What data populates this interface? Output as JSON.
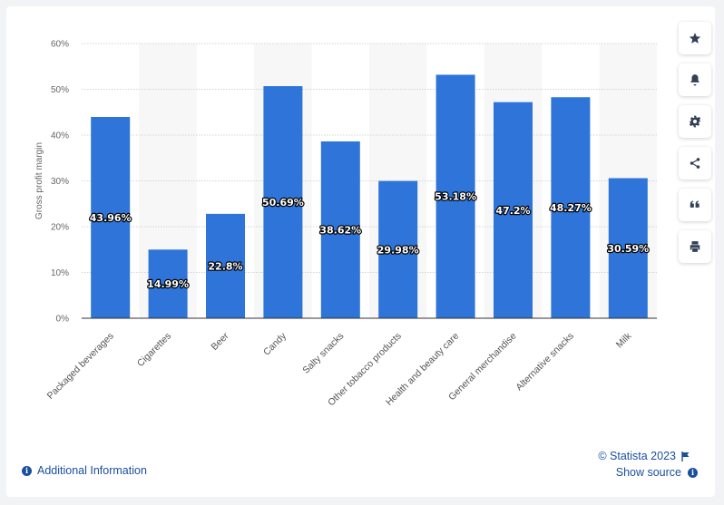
{
  "chart_data": {
    "type": "bar",
    "categories": [
      "Packaged beverages",
      "Cigarettes",
      "Beer",
      "Candy",
      "Salty snacks",
      "Other tobacco products",
      "Health and beauty care",
      "General merchandise",
      "Alternative snacks",
      "Milk"
    ],
    "values": [
      43.96,
      14.99,
      22.8,
      50.69,
      38.62,
      29.98,
      53.18,
      47.2,
      48.27,
      30.59
    ],
    "value_labels": [
      "43.96%",
      "14.99%",
      "22.8%",
      "50.69%",
      "38.62%",
      "29.98%",
      "53.18%",
      "47.2%",
      "48.27%",
      "30.59%"
    ],
    "ylabel": "Gross profit margin",
    "ylim": [
      0,
      60
    ],
    "yticks": [
      0,
      10,
      20,
      30,
      40,
      50,
      60
    ],
    "ytick_labels": [
      "0%",
      "10%",
      "20%",
      "30%",
      "40%",
      "50%",
      "60%"
    ],
    "bar_color": "#2e74d9",
    "grid": true
  },
  "sidebar": {
    "buttons": [
      {
        "name": "favorite",
        "icon": "star-icon"
      },
      {
        "name": "notification",
        "icon": "bell-icon"
      },
      {
        "name": "settings",
        "icon": "gear-icon"
      },
      {
        "name": "share",
        "icon": "share-icon"
      },
      {
        "name": "cite",
        "icon": "quote-icon"
      },
      {
        "name": "print",
        "icon": "print-icon"
      }
    ]
  },
  "footer": {
    "copyright": "© Statista 2023",
    "additional_info": "Additional Information",
    "show_source": "Show source"
  },
  "colors": {
    "accent": "#1a4f9c",
    "bar": "#2e74d9",
    "icon": "#334155"
  }
}
